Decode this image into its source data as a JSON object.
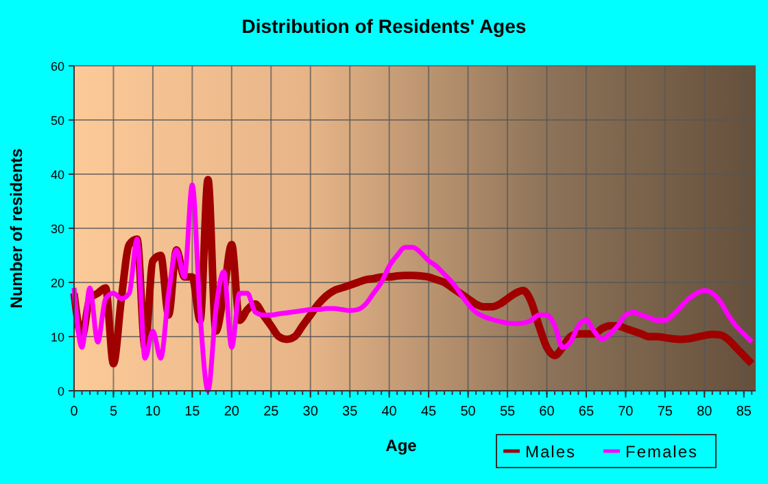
{
  "chart_data": {
    "type": "line",
    "title": "Distribution of Residents' Ages",
    "xlabel": "Age",
    "ylabel": "Number of residents",
    "x": [
      0,
      1,
      2,
      3,
      4,
      5,
      6,
      7,
      8,
      9,
      10,
      11,
      12,
      13,
      14,
      15,
      16,
      17,
      18,
      19,
      20,
      21,
      22,
      23,
      24,
      25,
      26,
      27,
      28,
      29,
      30,
      31,
      32,
      33,
      34,
      35,
      36,
      37,
      38,
      39,
      40,
      41,
      42,
      43,
      44,
      45,
      46,
      47,
      48,
      49,
      50,
      51,
      52,
      53,
      54,
      55,
      56,
      57,
      58,
      59,
      60,
      61,
      62,
      63,
      64,
      65,
      66,
      67,
      68,
      69,
      70,
      71,
      72,
      73,
      74,
      75,
      76,
      77,
      78,
      79,
      80,
      81,
      82,
      83,
      84,
      85,
      86
    ],
    "series": [
      {
        "name": "Males",
        "color": "#a00000",
        "values": [
          18,
          10,
          17,
          18,
          19,
          5,
          17,
          27,
          28,
          8,
          24,
          25,
          14,
          26,
          21,
          21,
          13,
          39,
          11,
          18,
          27,
          13,
          15,
          16,
          14,
          12,
          10,
          9.5,
          10,
          12,
          14,
          16,
          17.5,
          18.5,
          19,
          19.5,
          20,
          20.5,
          20.7,
          21,
          21,
          21.2,
          21.3,
          21.3,
          21.2,
          21,
          20.5,
          20,
          19,
          18,
          17,
          16,
          15.5,
          15.5,
          16,
          17,
          18,
          18.5,
          16.5,
          12,
          8,
          6.5,
          8,
          10,
          10.5,
          10.5,
          10.5,
          11.5,
          12,
          12,
          11.5,
          11,
          10.5,
          10,
          10,
          9.8,
          9.6,
          9.5,
          9.6,
          9.9,
          10.2,
          10.4,
          10.3,
          9.5,
          8,
          6.5,
          5
        ]
      },
      {
        "name": "Females",
        "color": "#ff00ff",
        "values": [
          19,
          8,
          19,
          9,
          17,
          18,
          17,
          18,
          28,
          6,
          11,
          6,
          18,
          26,
          21,
          38,
          14,
          0,
          15,
          22,
          8,
          18,
          18,
          14.5,
          14,
          14,
          14.2,
          14.4,
          14.6,
          14.8,
          15,
          15,
          15.2,
          15.2,
          15,
          14.8,
          15,
          16,
          18,
          20,
          23,
          25,
          26.5,
          26.5,
          25.5,
          24,
          23,
          21.5,
          20,
          18,
          16,
          14.5,
          13.7,
          13.2,
          12.8,
          12.5,
          12.4,
          12.5,
          13,
          14,
          14,
          12,
          8,
          9,
          12,
          13,
          11,
          9.5,
          10.5,
          12,
          14,
          14.5,
          14,
          13.5,
          13,
          13,
          14,
          15.5,
          17,
          18,
          18.5,
          18,
          16.5,
          14,
          12,
          10.5,
          9
        ]
      }
    ],
    "xlim": [
      0,
      86.5
    ],
    "xticks": [
      0,
      5,
      10,
      15,
      20,
      25,
      30,
      35,
      40,
      45,
      50,
      55,
      60,
      65,
      70,
      75,
      80,
      85
    ],
    "ylim": [
      0,
      60
    ],
    "yticks": [
      0,
      10,
      20,
      30,
      40,
      50,
      60
    ],
    "grid": true,
    "legend": "bottom right"
  }
}
